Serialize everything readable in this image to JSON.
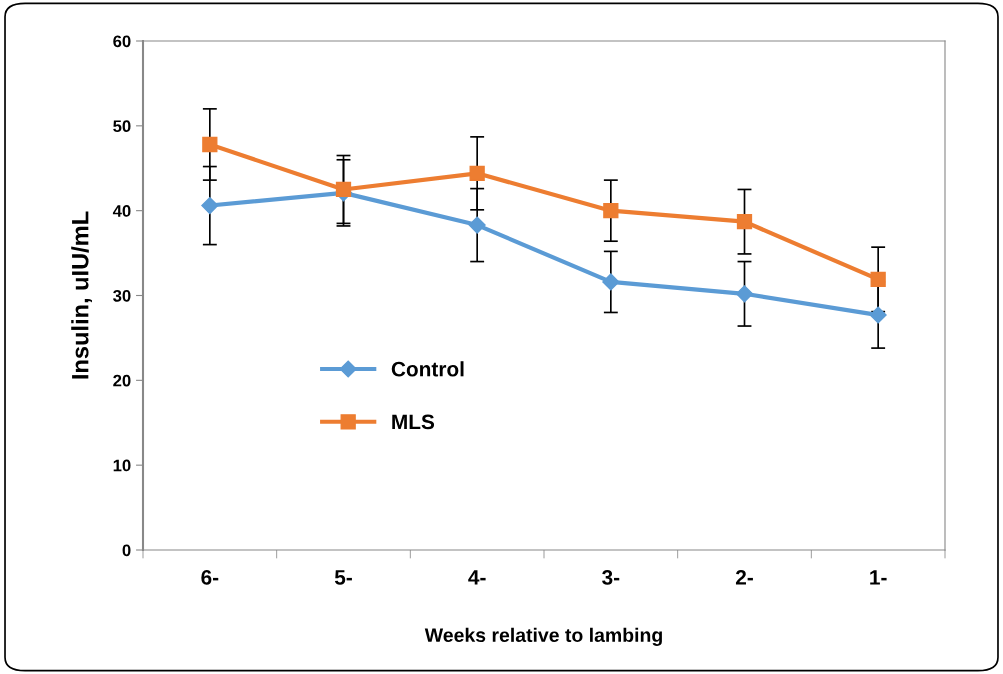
{
  "chart_data": {
    "type": "line",
    "xlabel": "Weeks relative to lambing",
    "ylabel": "Insulin, uIU/mL",
    "categories": [
      "6-",
      "5-",
      "4-",
      "3-",
      "2-",
      "1-"
    ],
    "series": [
      {
        "name": "Control",
        "color": "#5b9bd5",
        "marker": "diamond",
        "values": [
          40.6,
          42.1,
          38.3,
          31.6,
          30.2,
          27.7
        ],
        "errors": [
          4.6,
          3.9,
          4.3,
          3.6,
          3.8,
          3.9
        ]
      },
      {
        "name": "MLS",
        "color": "#ed7d31",
        "marker": "square",
        "values": [
          47.8,
          42.5,
          44.4,
          40.0,
          38.7,
          31.9
        ],
        "errors": [
          4.2,
          4.0,
          4.3,
          3.6,
          3.8,
          3.8
        ]
      }
    ],
    "ylim": [
      0,
      60
    ],
    "yticks": [
      0,
      10,
      20,
      30,
      40,
      50,
      60
    ],
    "grid": false,
    "legend": "left",
    "line_style": "solid"
  }
}
